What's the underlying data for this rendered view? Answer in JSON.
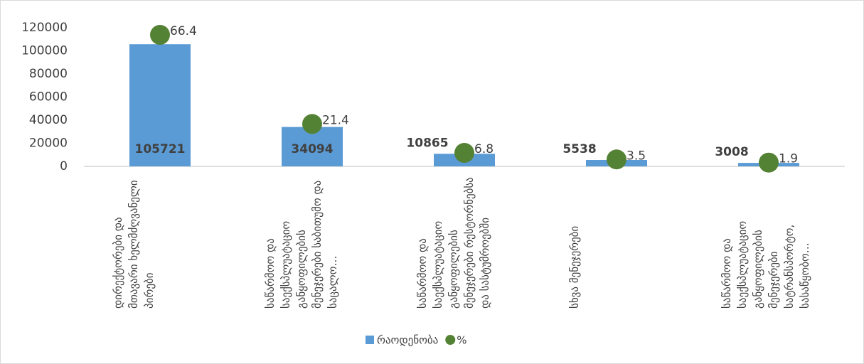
{
  "chart_data": {
    "type": "bar",
    "categories": [
      "დირექტორები და მთავარი ხელმძღვანელი პირები",
      "საწარმოო და საექსპლუატაციო განყოფილების მენეჯერები საბითუმო და საცალო…",
      "საწარმოო და საექსპლუატაციო განყოფილების მენეჯერები რესტორნებსა და სასტუმროებში",
      "სხვა მენეჯერები",
      "საწარმოო და საექსპლუატაციო განყოფილების მენეჯერები სატრანსპორტო, სასაწყობო…"
    ],
    "series": [
      {
        "name": "რაოდენობა",
        "type": "bar",
        "color": "#5b9bd5",
        "values": [
          105721,
          34094,
          10865,
          5538,
          3008
        ]
      },
      {
        "name": "%",
        "type": "scatter",
        "axis": "y2",
        "color": "#548235",
        "values": [
          66.4,
          21.4,
          6.8,
          3.5,
          1.9
        ]
      }
    ],
    "ylim": [
      0,
      120000
    ],
    "yticks": [
      0,
      20000,
      40000,
      60000,
      80000,
      100000,
      120000
    ],
    "y2lim": [
      0,
      70
    ],
    "legend": "bottom",
    "grid": false
  }
}
